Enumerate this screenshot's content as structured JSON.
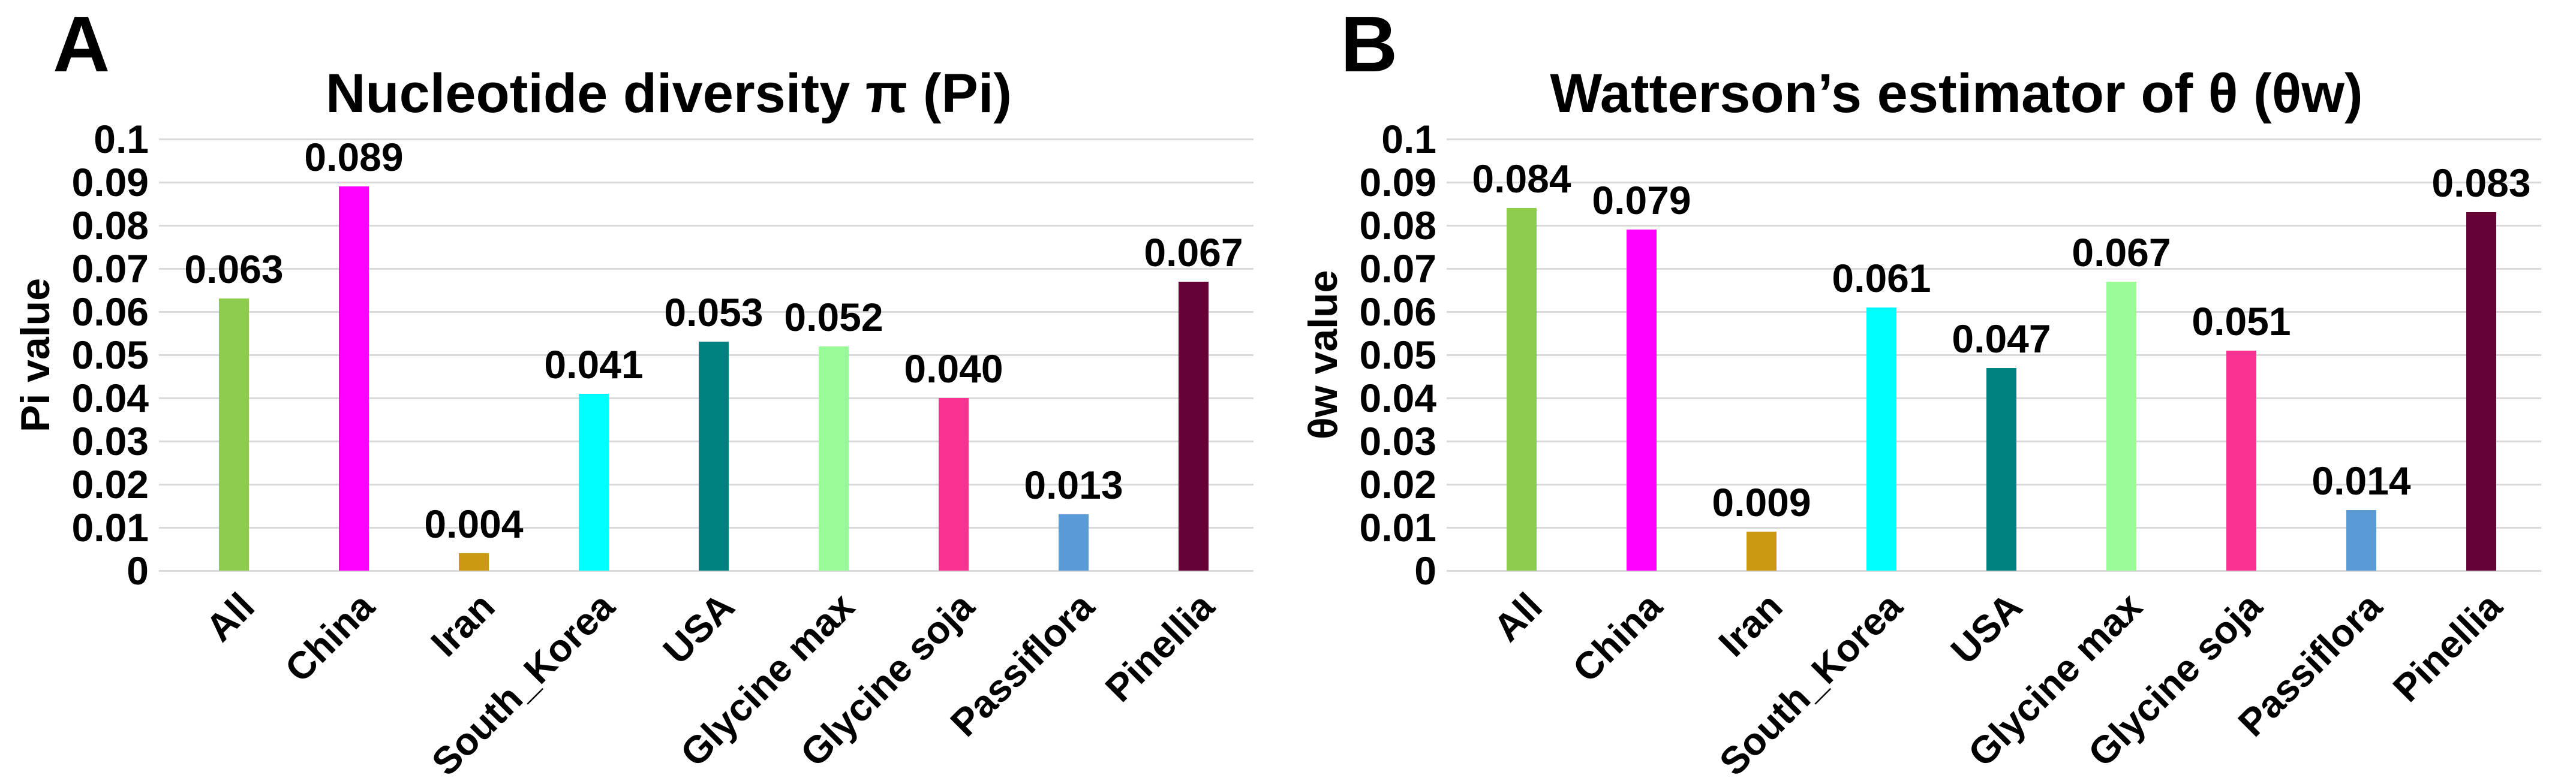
{
  "figure": {
    "background": "#ffffff",
    "grid_color": "#d9d9d9",
    "text_color": "#000000"
  },
  "chart_data": [
    {
      "type": "bar",
      "panel_label": "A",
      "title": "Nucleotide diversity π (Pi)",
      "xlabel": "",
      "ylabel": "Pi value",
      "categories": [
        "All",
        "China",
        "Iran",
        "South_Korea",
        "USA",
        "Glycine max",
        "Glycine soja",
        "Passiflora",
        "Pinellia"
      ],
      "values": [
        0.063,
        0.089,
        0.004,
        0.041,
        0.053,
        0.052,
        0.04,
        0.013,
        0.067
      ],
      "value_labels": [
        "0.063",
        "0.089",
        "0.004",
        "0.041",
        "0.053",
        "0.052",
        "0.040",
        "0.013",
        "0.067"
      ],
      "bar_colors": [
        "#8CCB4D",
        "#FF00FF",
        "#CC9914",
        "#00FFFF",
        "#018080",
        "#98FB98",
        "#F93190",
        "#5B9BD5",
        "#660336"
      ],
      "ylim": [
        0,
        0.1
      ],
      "ytick_step": 0.01,
      "ytick_labels": [
        "0",
        "0.01",
        "0.02",
        "0.03",
        "0.04",
        "0.05",
        "0.06",
        "0.07",
        "0.08",
        "0.09",
        "0.1"
      ],
      "grid": true,
      "legend": "none"
    },
    {
      "type": "bar",
      "panel_label": "B",
      "title": "Watterson’s estimator of θ (θw)",
      "xlabel": "",
      "ylabel": "θw value",
      "categories": [
        "All",
        "China",
        "Iran",
        "South_Korea",
        "USA",
        "Glycine max",
        "Glycine soja",
        "Passiflora",
        "Pinellia"
      ],
      "values": [
        0.084,
        0.079,
        0.009,
        0.061,
        0.047,
        0.067,
        0.051,
        0.014,
        0.083
      ],
      "value_labels": [
        "0.084",
        "0.079",
        "0.009",
        "0.061",
        "0.047",
        "0.067",
        "0.051",
        "0.014",
        "0.083"
      ],
      "bar_colors": [
        "#8CCB4D",
        "#FF00FF",
        "#CC9914",
        "#00FFFF",
        "#018080",
        "#98FB98",
        "#F93190",
        "#5B9BD5",
        "#660336"
      ],
      "ylim": [
        0,
        0.1
      ],
      "ytick_step": 0.01,
      "ytick_labels": [
        "0",
        "0.01",
        "0.02",
        "0.03",
        "0.04",
        "0.05",
        "0.06",
        "0.07",
        "0.08",
        "0.09",
        "0.1"
      ],
      "grid": true,
      "legend": "none"
    }
  ]
}
